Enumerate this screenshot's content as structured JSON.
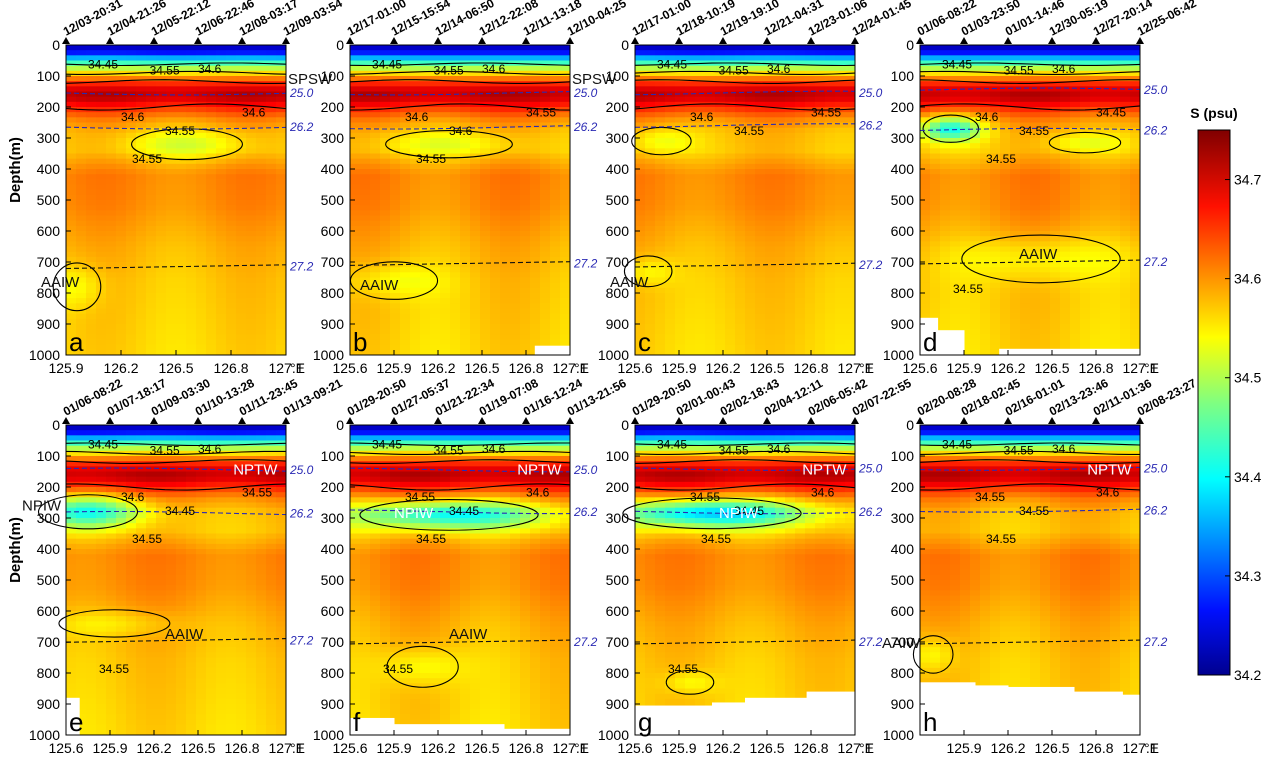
{
  "chart_data": {
    "type": "heatmap",
    "variable": "S (psu)",
    "ylabel": "Depth(m)",
    "x_unit": "°E",
    "y_ticks": [
      "0",
      "100",
      "200",
      "300",
      "400",
      "500",
      "600",
      "700",
      "800",
      "900",
      "1000"
    ],
    "ylim": [
      0,
      1000
    ],
    "colorbar": {
      "title": "S (psu)",
      "range": [
        34.2,
        34.75
      ],
      "ticks": [
        "34.2",
        "34.3",
        "34.4",
        "34.5",
        "34.6",
        "34.7"
      ],
      "colormap": "jet"
    },
    "panels": [
      {
        "id": "a",
        "xlim": [
          125.9,
          127.1
        ],
        "x_ticks": [
          "125.9",
          "126.2",
          "126.5",
          "126.8",
          "127.1"
        ],
        "times": [
          "12/03-20:31",
          "12/04-21:26",
          "12/05-22:12",
          "12/06-22:46",
          "12/08-03:17",
          "12/09-03:54"
        ],
        "isopycnals": [
          {
            "label": "25.0",
            "depth": 155
          },
          {
            "label": "26.2",
            "depth": 265
          },
          {
            "label": "27.2",
            "depth": 715
          }
        ],
        "contour_labels": [
          "34.45",
          "34.55",
          "34.6",
          "34.6",
          "34.6",
          "34.55",
          "34.55"
        ],
        "water_masses": [
          "SPSW",
          "AAIW"
        ]
      },
      {
        "id": "b",
        "xlim": [
          125.6,
          127.1
        ],
        "x_ticks": [
          "125.6",
          "125.9",
          "126.2",
          "126.5",
          "126.8",
          "127.1"
        ],
        "times": [
          "12/17-01:00",
          "12/15-15:54",
          "12/14-06:50",
          "12/12-22:08",
          "12/11-13:18",
          "12/10-04:25"
        ],
        "isopycnals": [
          {
            "label": "25.0",
            "depth": 155
          },
          {
            "label": "26.2",
            "depth": 265
          },
          {
            "label": "27.2",
            "depth": 705
          }
        ],
        "contour_labels": [
          "34.45",
          "34.55",
          "34.6",
          "34.6",
          "34.55",
          "34.6",
          "34.55"
        ],
        "water_masses": [
          "SPSW",
          "AAIW"
        ]
      },
      {
        "id": "c",
        "xlim": [
          125.6,
          127.1
        ],
        "x_ticks": [
          "125.6",
          "125.9",
          "126.2",
          "126.5",
          "126.8",
          "127.1"
        ],
        "times": [
          "12/17-01:00",
          "12/18-10:19",
          "12/19-19:10",
          "12/21-04:31",
          "12/23-01:06",
          "12/24-01:45"
        ],
        "isopycnals": [
          {
            "label": "25.0",
            "depth": 155
          },
          {
            "label": "26.2",
            "depth": 260
          },
          {
            "label": "27.2",
            "depth": 710
          }
        ],
        "contour_labels": [
          "34.45",
          "34.55",
          "34.6",
          "34.6",
          "34.55",
          "34.55"
        ],
        "water_masses": [
          "AAIW"
        ]
      },
      {
        "id": "d",
        "xlim": [
          125.6,
          127.1
        ],
        "x_ticks": [
          "125.6",
          "125.9",
          "126.2",
          "126.5",
          "126.8",
          "127.1"
        ],
        "times": [
          "01/06-08:22",
          "01/03-23:50",
          "01/01-14:46",
          "12/30-05:19",
          "12/27-20:14",
          "12/25-06:42"
        ],
        "isopycnals": [
          {
            "label": "25.0",
            "depth": 145
          },
          {
            "label": "26.2",
            "depth": 275
          },
          {
            "label": "27.2",
            "depth": 700
          }
        ],
        "contour_labels": [
          "34.45",
          "34.55",
          "34.6",
          "34.6",
          "34.45",
          "34.55",
          "34.55",
          "34.55"
        ],
        "water_masses": [
          "AAIW"
        ]
      },
      {
        "id": "e",
        "xlim": [
          125.6,
          127.1
        ],
        "x_ticks": [
          "125.6",
          "125.9",
          "126.2",
          "126.5",
          "126.8",
          "127.1"
        ],
        "times": [
          "01/06-08:22",
          "01/07-18:17",
          "01/09-03:30",
          "01/10-13:28",
          "01/11-23:45",
          "01/13-09:21"
        ],
        "isopycnals": [
          {
            "label": "25.0",
            "depth": 145
          },
          {
            "label": "26.2",
            "depth": 285
          },
          {
            "label": "27.2",
            "depth": 695
          }
        ],
        "contour_labels": [
          "34.45",
          "34.55",
          "34.6",
          "34.6",
          "34.55",
          "34.45",
          "34.55",
          "34.55"
        ],
        "water_masses": [
          "NPTW",
          "NPIW",
          "AAIW"
        ]
      },
      {
        "id": "f",
        "xlim": [
          125.6,
          127.1
        ],
        "x_ticks": [
          "125.6",
          "125.9",
          "126.2",
          "126.5",
          "126.8",
          "127.1"
        ],
        "times": [
          "01/29-20:50",
          "01/27-05:37",
          "01/21-22:34",
          "01/19-07:08",
          "01/16-12:24",
          "01/13-21:56"
        ],
        "isopycnals": [
          {
            "label": "25.0",
            "depth": 145
          },
          {
            "label": "26.2",
            "depth": 280
          },
          {
            "label": "27.2",
            "depth": 700
          }
        ],
        "contour_labels": [
          "34.45",
          "34.55",
          "34.6",
          "34.55",
          "34.6",
          "34.45",
          "34.55",
          "34.55"
        ],
        "water_masses": [
          "NPTW",
          "NPIW",
          "AAIW"
        ]
      },
      {
        "id": "g",
        "xlim": [
          125.6,
          127.1
        ],
        "x_ticks": [
          "125.6",
          "125.9",
          "126.2",
          "126.5",
          "126.8",
          "127.1"
        ],
        "times": [
          "01/29-20:50",
          "02/01-00:43",
          "02/02-18:43",
          "02/04-12:11",
          "02/06-05:42",
          "02/07-22:55"
        ],
        "isopycnals": [
          {
            "label": "25.0",
            "depth": 140
          },
          {
            "label": "26.2",
            "depth": 280
          },
          {
            "label": "27.2",
            "depth": 700
          }
        ],
        "contour_labels": [
          "34.45",
          "34.55",
          "34.6",
          "34.55",
          "34.6",
          "34.45",
          "34.55",
          "34.55"
        ],
        "water_masses": [
          "NPTW",
          "NPIW"
        ]
      },
      {
        "id": "h",
        "xlim": [
          125.6,
          127.1
        ],
        "x_ticks": [
          "125.9",
          "126.2",
          "126.5",
          "126.8",
          "127.1"
        ],
        "times": [
          "02/20-08:28",
          "02/18-02:45",
          "02/16-01:01",
          "02/13-23:46",
          "02/11-01:36",
          "02/08-23:27"
        ],
        "isopycnals": [
          {
            "label": "25.0",
            "depth": 140
          },
          {
            "label": "26.2",
            "depth": 275
          },
          {
            "label": "27.2",
            "depth": 700
          }
        ],
        "contour_labels": [
          "34.45",
          "34.55",
          "34.6",
          "34.55",
          "34.6",
          "34.55",
          "34.55"
        ],
        "water_masses": [
          "NPTW",
          "AAIW"
        ]
      }
    ]
  }
}
